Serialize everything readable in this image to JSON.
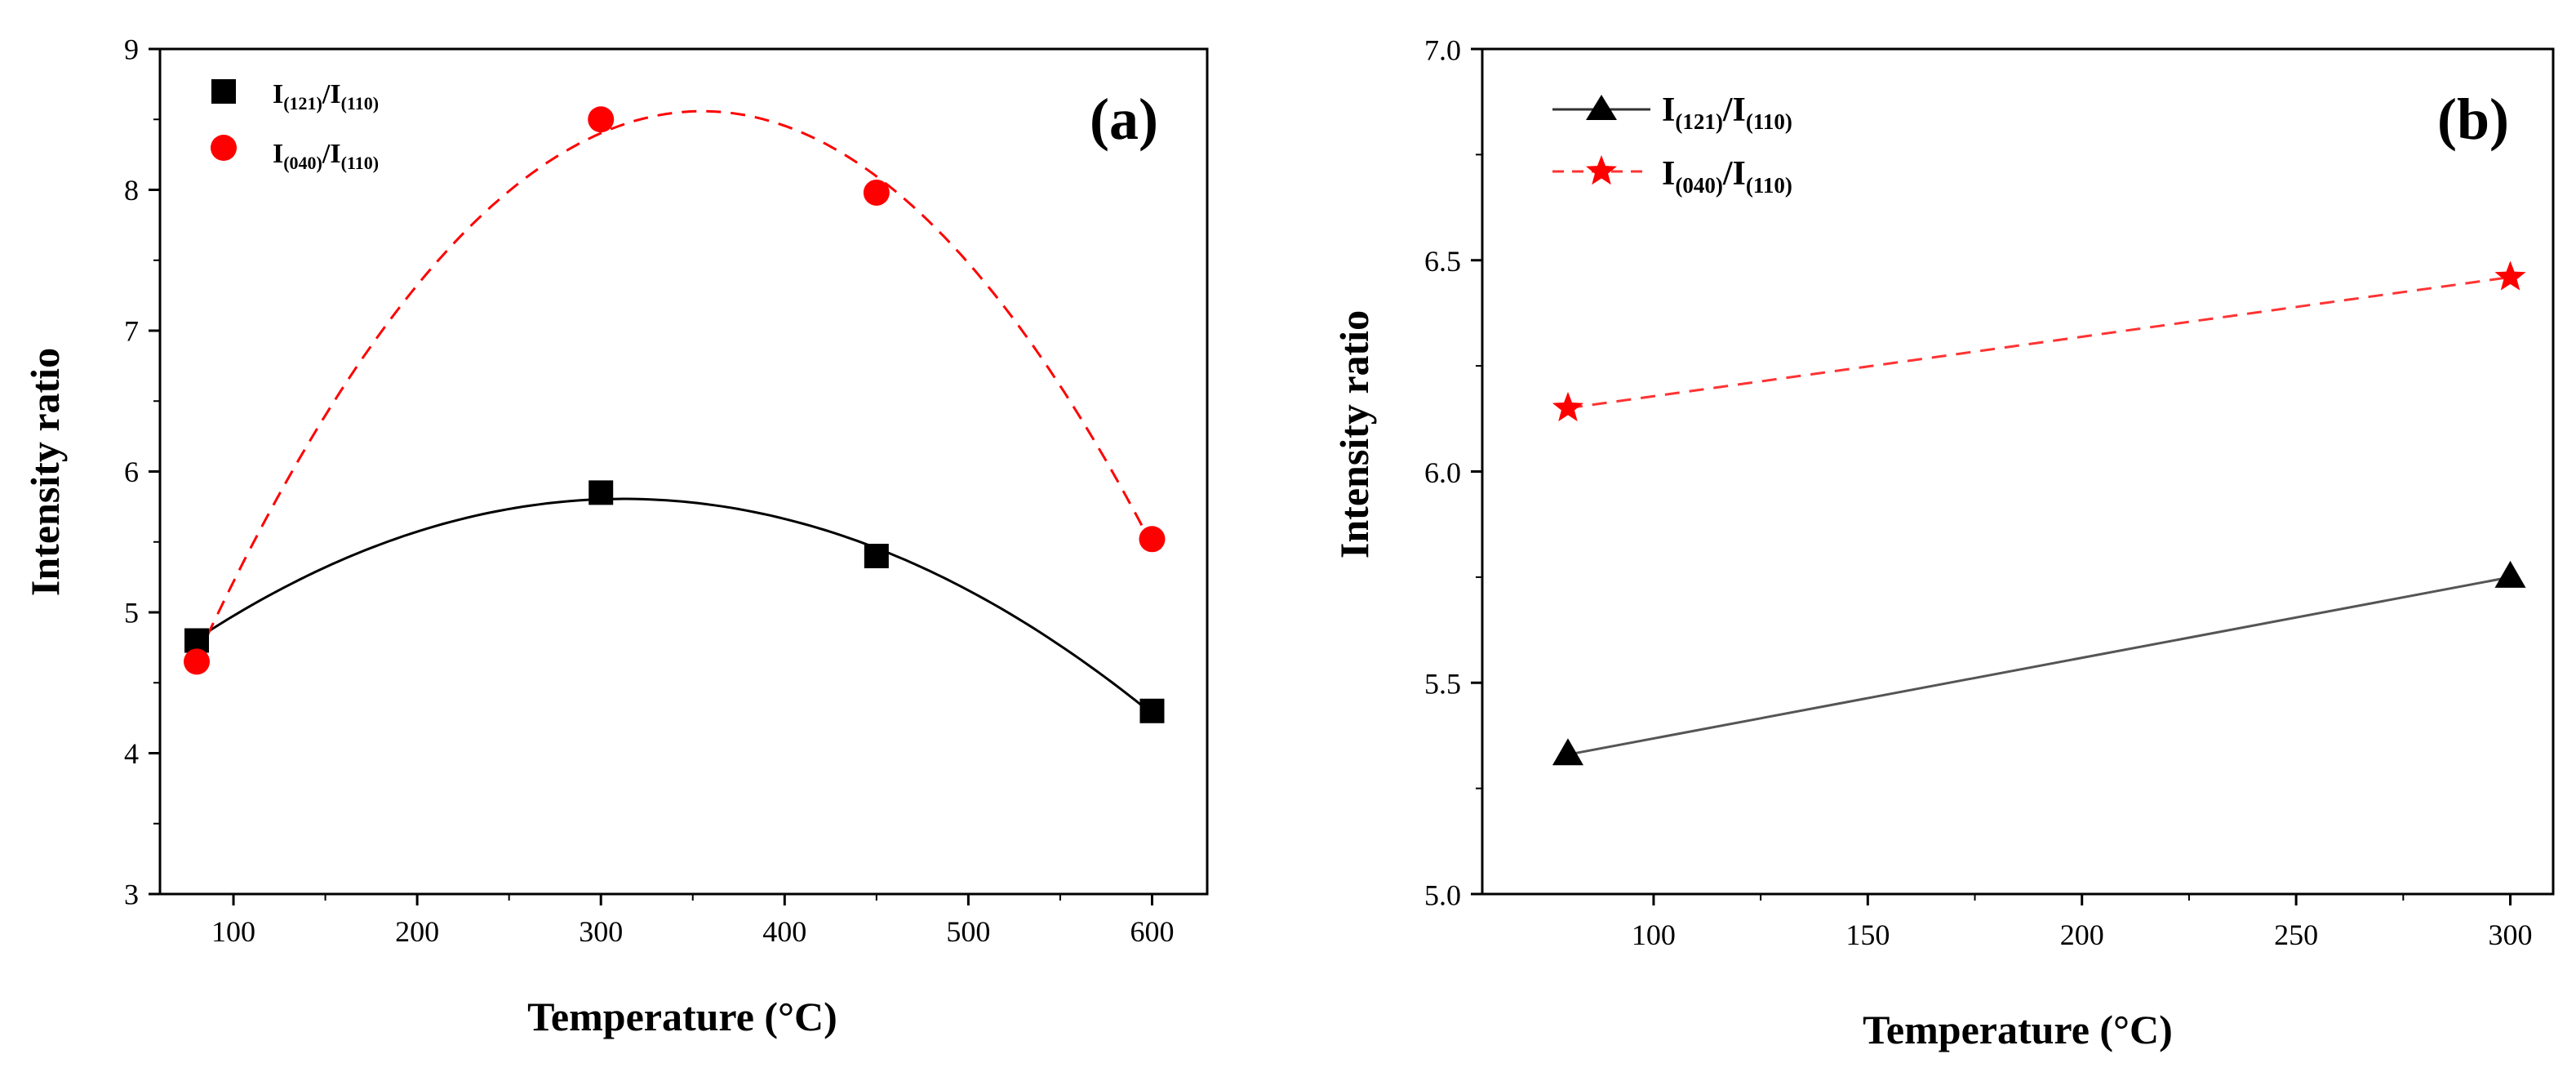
{
  "chart_data": [
    {
      "type": "scatter",
      "panel_label": "(a)",
      "xlabel": "Temperature (°C)",
      "ylabel": "Intensity ratio",
      "xlim": [
        60,
        630
      ],
      "ylim": [
        3,
        9
      ],
      "xticks": [
        100,
        200,
        300,
        400,
        500,
        600
      ],
      "yticks": [
        3,
        4,
        5,
        6,
        7,
        8,
        9
      ],
      "legend_position": "top-left",
      "series": [
        {
          "name": "I(121)/I(110)",
          "label_main": "I",
          "label_sub1": "(121)",
          "label_slash": "/I",
          "label_sub2": "(110)",
          "marker": "square",
          "color": "#000000",
          "line_style": "solid",
          "fit": "quadratic",
          "x": [
            80,
            300,
            450,
            600
          ],
          "y": [
            4.8,
            5.85,
            5.4,
            4.3
          ]
        },
        {
          "name": "I(040)/I(110)",
          "label_main": "I",
          "label_sub1": "(040)",
          "label_slash": "/I",
          "label_sub2": "(110)",
          "marker": "circle",
          "color": "#ff0000",
          "line_style": "dashed",
          "fit": "quadratic",
          "x": [
            80,
            300,
            450,
            600
          ],
          "y": [
            4.65,
            8.5,
            7.98,
            5.52
          ]
        }
      ]
    },
    {
      "type": "line",
      "panel_label": "(b)",
      "xlabel": "Temperature (°C)",
      "ylabel": "Intensity ratio",
      "xlim": [
        60,
        310
      ],
      "ylim": [
        5.0,
        7.0
      ],
      "xticks": [
        100,
        150,
        200,
        250,
        300
      ],
      "yticks": [
        5.0,
        5.5,
        6.0,
        6.5,
        7.0
      ],
      "ytick_labels": [
        "5.0",
        "5.5",
        "6.0",
        "6.5",
        "7.0"
      ],
      "legend_position": "top-left",
      "series": [
        {
          "name": "I(121)/I(110)",
          "label_main": "I",
          "label_sub1": "(121)",
          "label_slash": "/I",
          "label_sub2": "(110)",
          "marker": "triangle",
          "color": "#000000",
          "line_color": "#555555",
          "line_style": "solid",
          "x": [
            80,
            300
          ],
          "y": [
            5.33,
            5.75
          ]
        },
        {
          "name": "I(040)/I(110)",
          "label_main": "I",
          "label_sub1": "(040)",
          "label_slash": "/I",
          "label_sub2": "(110)",
          "marker": "star",
          "color": "#ff0000",
          "line_color": "#ff3333",
          "line_style": "dashed",
          "x": [
            80,
            300
          ],
          "y": [
            6.15,
            6.46
          ]
        }
      ]
    }
  ]
}
